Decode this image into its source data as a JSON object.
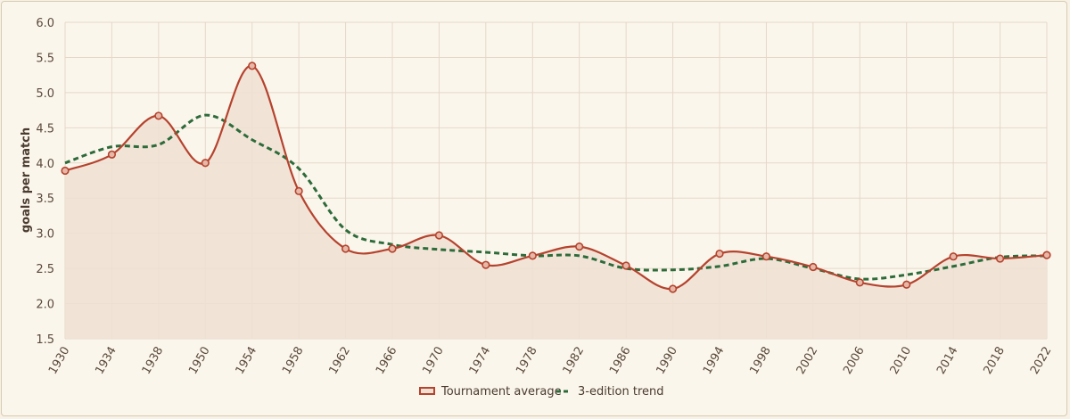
{
  "chart_data": {
    "type": "line",
    "title": "",
    "xlabel": "",
    "ylabel": "goals per match",
    "ylim": [
      1.5,
      6.0
    ],
    "yticks": [
      "1.5",
      "2.0",
      "2.5",
      "3.0",
      "3.5",
      "4.0",
      "4.5",
      "5.0",
      "5.5",
      "6.0"
    ],
    "categories": [
      "1930",
      "1934",
      "1938",
      "1950",
      "1954",
      "1958",
      "1962",
      "1966",
      "1970",
      "1974",
      "1978",
      "1982",
      "1986",
      "1990",
      "1994",
      "1998",
      "2002",
      "2006",
      "2010",
      "2014",
      "2018",
      "2022"
    ],
    "grid": true,
    "legend_position": "bottom-center",
    "series": [
      {
        "name": "Tournament average",
        "style": "solid-area-markers",
        "color": "#b5432e",
        "fill": "#efe0d4",
        "values": [
          3.89,
          4.12,
          4.67,
          4.0,
          5.38,
          3.6,
          2.78,
          2.78,
          2.97,
          2.55,
          2.68,
          2.81,
          2.54,
          2.21,
          2.71,
          2.67,
          2.52,
          2.3,
          2.27,
          2.67,
          2.64,
          2.69
        ]
      },
      {
        "name": "3-edition trend",
        "style": "dashed",
        "color": "#2e6b3a",
        "values": [
          4.0,
          4.23,
          4.26,
          4.68,
          4.33,
          3.92,
          3.05,
          2.84,
          2.77,
          2.73,
          2.68,
          2.68,
          2.5,
          2.48,
          2.53,
          2.64,
          2.5,
          2.35,
          2.41,
          2.53,
          2.66,
          2.68
        ]
      }
    ]
  }
}
